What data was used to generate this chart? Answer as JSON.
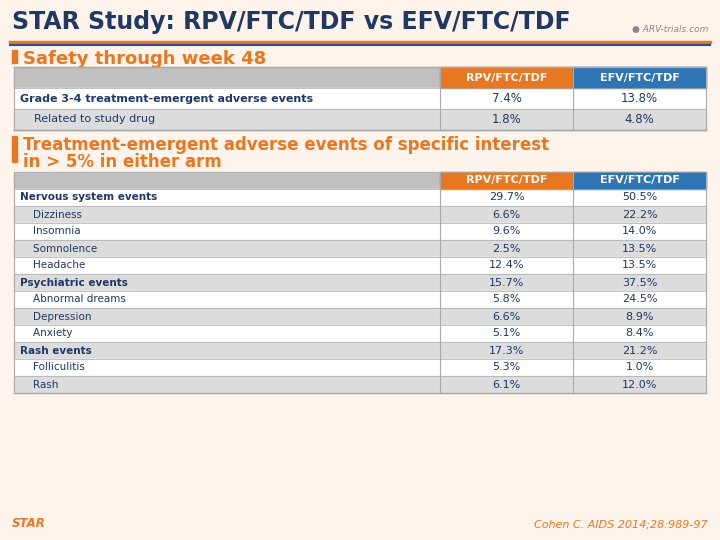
{
  "title": "STAR Study: RPV/FTC/TDF vs EFV/FTC/TDF",
  "title_color": "#1F3864",
  "title_fontsize": 17,
  "bg_color": "#FEF4EC",
  "orange_color": "#E87722",
  "blue_color": "#2E4A9E",
  "bullet1": "Safety through week 48",
  "bullet2_line1": "Treatment-emergent adverse events of specific interest",
  "bullet2_line2": "in > 5% in either arm",
  "bullet_color": "#E87722",
  "table1_header": [
    "RPV/FTC/TDF",
    "EFV/FTC/TDF"
  ],
  "table1_rows": [
    [
      "Grade 3-4 treatment-emergent adverse events",
      "7.4%",
      "13.8%",
      "bold"
    ],
    [
      "    Related to study drug",
      "1.8%",
      "4.8%",
      "normal"
    ]
  ],
  "table2_header": [
    "RPV/FTC/TDF",
    "EFV/FTC/TDF"
  ],
  "table2_rows": [
    [
      "Nervous system events",
      "29.7%",
      "50.5%",
      "bold"
    ],
    [
      "    Dizziness",
      "6.6%",
      "22.2%",
      "normal"
    ],
    [
      "    Insomnia",
      "9.6%",
      "14.0%",
      "normal"
    ],
    [
      "    Somnolence",
      "2.5%",
      "13.5%",
      "normal"
    ],
    [
      "    Headache",
      "12.4%",
      "13.5%",
      "normal"
    ],
    [
      "Psychiatric events",
      "15.7%",
      "37.5%",
      "bold"
    ],
    [
      "    Abnormal dreams",
      "5.8%",
      "24.5%",
      "normal"
    ],
    [
      "    Depression",
      "6.6%",
      "8.9%",
      "normal"
    ],
    [
      "    Anxiety",
      "5.1%",
      "8.4%",
      "normal"
    ],
    [
      "Rash events",
      "17.3%",
      "21.2%",
      "bold"
    ],
    [
      "    Folliculitis",
      "5.3%",
      "1.0%",
      "normal"
    ],
    [
      "    Rash",
      "6.1%",
      "12.0%",
      "normal"
    ]
  ],
  "footer_left": "STAR",
  "footer_right": "Cohen C. AIDS 2014;28:989-97",
  "footer_left_color": "#E87722",
  "footer_right_color": "#E87722",
  "col_header_rpv_color": "#E87722",
  "col_header_efv_color": "#2E75B6",
  "row_odd_color": "#FFFFFF",
  "row_even_color": "#DCDCDC",
  "header_row_bg": "#C0C0C0",
  "table_border_color": "#AAAAAA",
  "text_color": "#1F3864"
}
